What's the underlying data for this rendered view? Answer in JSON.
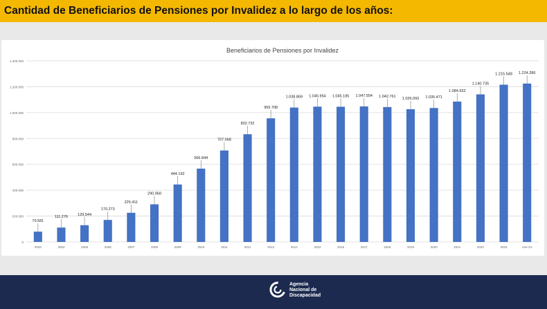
{
  "header": {
    "title": "Cantidad de Beneficiarios de Pensiones por Invalidez a lo largo de los años:"
  },
  "footer": {
    "logo_lines": [
      "Agencia",
      "Nacional de",
      "Discapacidad"
    ]
  },
  "colors": {
    "banner": "#f5b800",
    "bar": "#4472c4",
    "footer": "#1d2a4f"
  },
  "chart_data": {
    "type": "bar",
    "title": "Beneficiarios de Pensiones por Invalidez",
    "categories": [
      "2003",
      "2004",
      "2005",
      "2006",
      "2007",
      "2008",
      "2009",
      "2010",
      "2011",
      "2012",
      "2013",
      "2014",
      "2015",
      "2016",
      "2017",
      "2018",
      "2019",
      "2020",
      "2021",
      "2022",
      "2023",
      "ene-24"
    ],
    "values": [
      79581,
      111276,
      129544,
      170273,
      225411,
      290968,
      444192,
      566844,
      707068,
      832732,
      955708,
      1038869,
      1045954,
      1045185,
      1047554,
      1042761,
      1026093,
      1035471,
      1084932,
      1140735,
      1215548,
      1224286
    ],
    "value_labels": [
      "79.581",
      "111.276",
      "129.544",
      "170.273",
      "225.411",
      "290.968",
      "444.192",
      "566.844",
      "707.068",
      "832.732",
      "955.708",
      "1.038.869",
      "1.045.954",
      "1.045.185",
      "1.047.554",
      "1.042.761",
      "1.026.093",
      "1.035.471",
      "1.084.932",
      "1.140.735",
      "1.215.548",
      "1.224.286"
    ],
    "yticks": [
      0,
      200000,
      400000,
      600000,
      800000,
      1000000,
      1200000,
      1400000
    ],
    "ytick_labels": [
      "0",
      "200.000",
      "400.000",
      "600.000",
      "800.000",
      "1.000.000",
      "1.200.000",
      "1.400.000"
    ],
    "ylim": [
      0,
      1400000
    ],
    "grid": true,
    "legend": "none"
  }
}
